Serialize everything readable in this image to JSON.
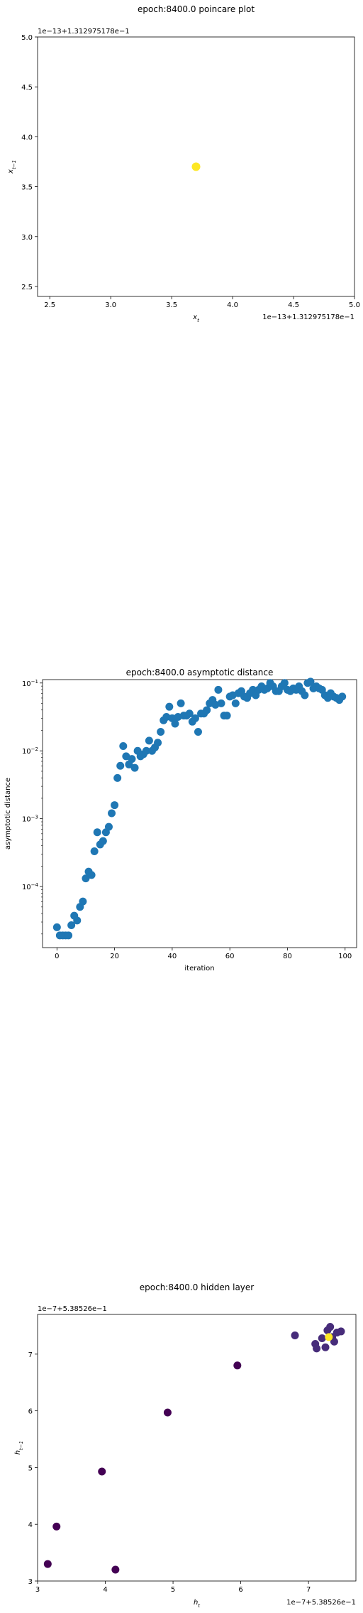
{
  "chart_data": [
    {
      "type": "scatter",
      "title": "epoch:8400.0 poincare plot",
      "xlabel": "x_t",
      "ylabel": "x_{t-1}",
      "x_offset_label": "1e−13+1.312975178e−1",
      "y_offset_label": "1e−13+1.312975178e−1",
      "xlim": [
        2.4,
        5.0
      ],
      "ylim": [
        2.4,
        5.0
      ],
      "xticks": [
        2.5,
        3.0,
        3.5,
        4.0,
        4.5,
        5.0
      ],
      "yticks": [
        2.5,
        3.0,
        3.5,
        4.0,
        4.5,
        5.0
      ],
      "points": [
        {
          "x": 3.7,
          "y": 3.7
        }
      ],
      "color": "#fde725"
    },
    {
      "type": "scatter",
      "title": "epoch:8400.0 asymptotic distance",
      "xlabel": "iteration",
      "ylabel": "asymptotic distance",
      "yscale": "log",
      "xlim": [
        -5,
        104
      ],
      "ylim_exp": [
        -4.9,
        -0.95
      ],
      "xticks": [
        0,
        20,
        40,
        60,
        80,
        100
      ],
      "ytick_exps": [
        -4,
        -3,
        -2,
        -1
      ],
      "color": "#1f77b4",
      "x": [
        0,
        1,
        2,
        3,
        4,
        5,
        6,
        7,
        8,
        9,
        10,
        11,
        12,
        13,
        14,
        15,
        16,
        17,
        18,
        19,
        20,
        21,
        22,
        23,
        24,
        25,
        26,
        27,
        28,
        29,
        30,
        31,
        32,
        33,
        34,
        35,
        36,
        37,
        38,
        39,
        40,
        41,
        42,
        43,
        44,
        45,
        46,
        47,
        48,
        49,
        50,
        51,
        52,
        53,
        54,
        55,
        56,
        57,
        58,
        59,
        60,
        61,
        62,
        63,
        64,
        65,
        66,
        67,
        68,
        69,
        70,
        71,
        72,
        73,
        74,
        75,
        76,
        77,
        78,
        79,
        80,
        81,
        82,
        83,
        84,
        85,
        86,
        87,
        88,
        89,
        90,
        91,
        92,
        93,
        94,
        95,
        96,
        97,
        98,
        99
      ],
      "log10_y": [
        -4.6,
        -4.72,
        -4.72,
        -4.72,
        -4.72,
        -4.57,
        -4.43,
        -4.5,
        -4.3,
        -4.22,
        -3.88,
        -3.78,
        -3.83,
        -3.48,
        -3.2,
        -3.38,
        -3.33,
        -3.2,
        -3.12,
        -2.92,
        -2.8,
        -2.4,
        -2.22,
        -1.93,
        -2.08,
        -2.2,
        -2.12,
        -2.25,
        -2.0,
        -2.08,
        -2.05,
        -2.0,
        -1.85,
        -2.0,
        -1.95,
        -1.88,
        -1.72,
        -1.55,
        -1.5,
        -1.35,
        -1.52,
        -1.6,
        -1.5,
        -1.3,
        -1.48,
        -1.48,
        -1.45,
        -1.57,
        -1.52,
        -1.72,
        -1.45,
        -1.45,
        -1.4,
        -1.3,
        -1.25,
        -1.32,
        -1.1,
        -1.3,
        -1.48,
        -1.48,
        -1.2,
        -1.18,
        -1.3,
        -1.15,
        -1.12,
        -1.2,
        -1.22,
        -1.15,
        -1.1,
        -1.18,
        -1.1,
        -1.05,
        -1.1,
        -1.08,
        -1.0,
        -1.05,
        -1.12,
        -1.12,
        -1.05,
        -1.0,
        -1.1,
        -1.12,
        -1.08,
        -1.1,
        -1.05,
        -1.12,
        -1.18,
        -1.0,
        -0.98,
        -1.08,
        -1.05,
        -1.08,
        -1.1,
        -1.18,
        -1.22,
        -1.15,
        -1.2,
        -1.22,
        -1.25,
        -1.2
      ]
    },
    {
      "type": "scatter",
      "title": "epoch:8400.0 hidden layer",
      "xlabel": "h_t",
      "ylabel": "h_{t-1}",
      "x_offset_label": "1e−7+5.38526e−1",
      "y_offset_label": "1e−7+5.38526e−1",
      "xlim": [
        3.0,
        7.7
      ],
      "ylim": [
        3.0,
        7.7
      ],
      "xticks": [
        3,
        4,
        5,
        6,
        7
      ],
      "yticks": [
        3,
        4,
        5,
        6,
        7
      ],
      "colors": {
        "dark": "#440154",
        "mid": "#472c7a",
        "last": "#fde725"
      },
      "points": [
        {
          "x": 3.15,
          "y": 3.3,
          "c": "dark"
        },
        {
          "x": 3.28,
          "y": 3.96,
          "c": "dark"
        },
        {
          "x": 3.95,
          "y": 4.93,
          "c": "dark"
        },
        {
          "x": 4.15,
          "y": 3.2,
          "c": "dark"
        },
        {
          "x": 4.92,
          "y": 5.97,
          "c": "dark"
        },
        {
          "x": 5.95,
          "y": 6.8,
          "c": "dark"
        },
        {
          "x": 6.8,
          "y": 7.33,
          "c": "mid"
        },
        {
          "x": 7.1,
          "y": 7.18,
          "c": "mid"
        },
        {
          "x": 7.12,
          "y": 7.1,
          "c": "mid"
        },
        {
          "x": 7.2,
          "y": 7.28,
          "c": "mid"
        },
        {
          "x": 7.25,
          "y": 7.12,
          "c": "mid"
        },
        {
          "x": 7.28,
          "y": 7.42,
          "c": "mid"
        },
        {
          "x": 7.32,
          "y": 7.48,
          "c": "mid"
        },
        {
          "x": 7.38,
          "y": 7.22,
          "c": "mid"
        },
        {
          "x": 7.42,
          "y": 7.38,
          "c": "mid"
        },
        {
          "x": 7.48,
          "y": 7.4,
          "c": "mid"
        },
        {
          "x": 7.35,
          "y": 7.3,
          "c": "mid"
        },
        {
          "x": 7.3,
          "y": 7.3,
          "c": "last"
        }
      ]
    }
  ]
}
